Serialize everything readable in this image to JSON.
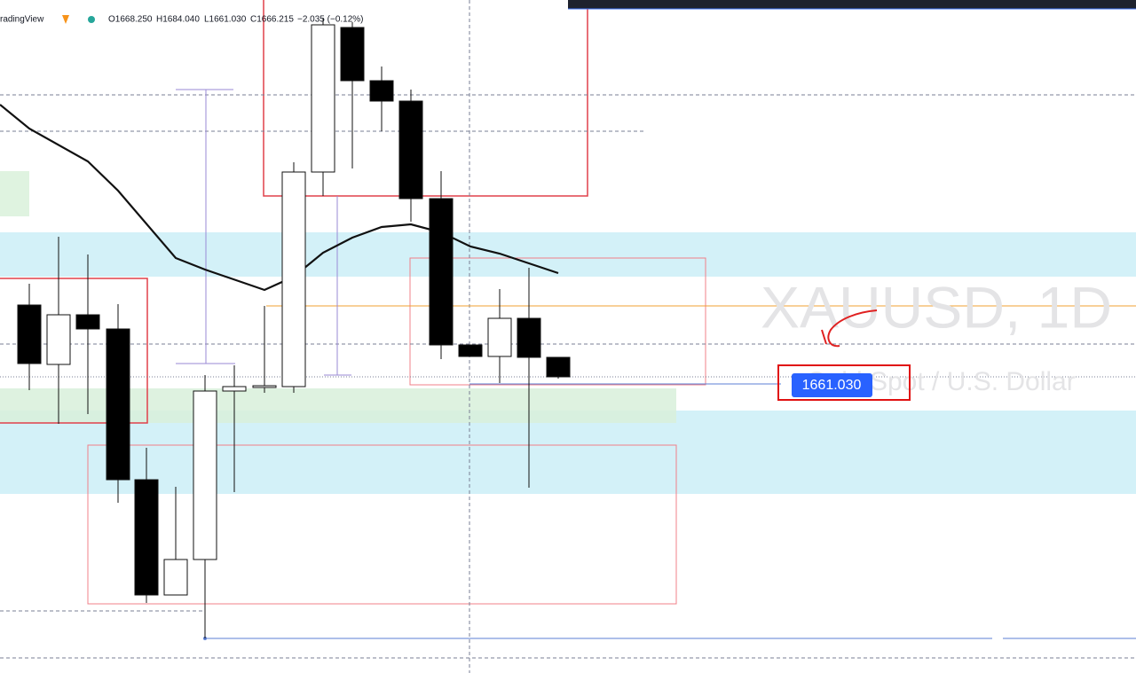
{
  "header": {
    "brand": "radingView",
    "open": "O1668.250",
    "high": "H1684.040",
    "low": "L1661.030",
    "close": "C1666.215",
    "change": "−2.035 (−0.12%)"
  },
  "watermark": {
    "symbol": "XAUUSD, 1D",
    "description": "Gold Spot / U.S. Dollar"
  },
  "price_label": "1661.030"
}
